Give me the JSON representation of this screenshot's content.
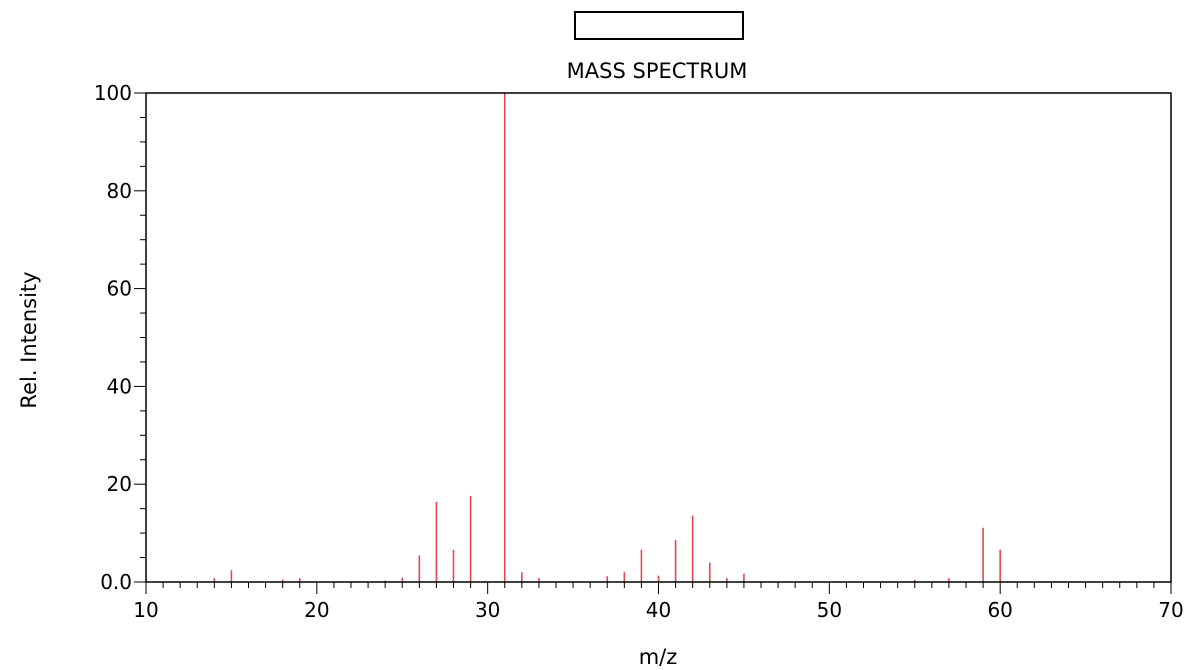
{
  "chart_data": {
    "type": "bar",
    "title": "MASS SPECTRUM",
    "xlabel": "m/z",
    "ylabel": "Rel. Intensity",
    "xlim": [
      10,
      70
    ],
    "ylim": [
      0,
      100
    ],
    "x_ticks": [
      "10",
      "20",
      "30",
      "40",
      "50",
      "60",
      "70"
    ],
    "y_ticks": [
      "0.0",
      "20",
      "40",
      "60",
      "80",
      "100"
    ],
    "grid": false,
    "color": "#e8474c",
    "series": [
      {
        "x": [
          14,
          15,
          18,
          19,
          24,
          25,
          26,
          27,
          28,
          29,
          31,
          32,
          33,
          37,
          38,
          39,
          40,
          41,
          42,
          43,
          44,
          45,
          55,
          57,
          59,
          60
        ],
        "y": [
          0.8,
          2.4,
          0.5,
          0.8,
          0.3,
          0.9,
          5.4,
          16.4,
          6.6,
          17.6,
          100,
          2.0,
          0.8,
          1.2,
          2.0,
          6.6,
          1.3,
          8.6,
          13.6,
          4.0,
          0.8,
          1.7,
          0.4,
          0.8,
          11.1,
          6.6
        ]
      }
    ]
  }
}
